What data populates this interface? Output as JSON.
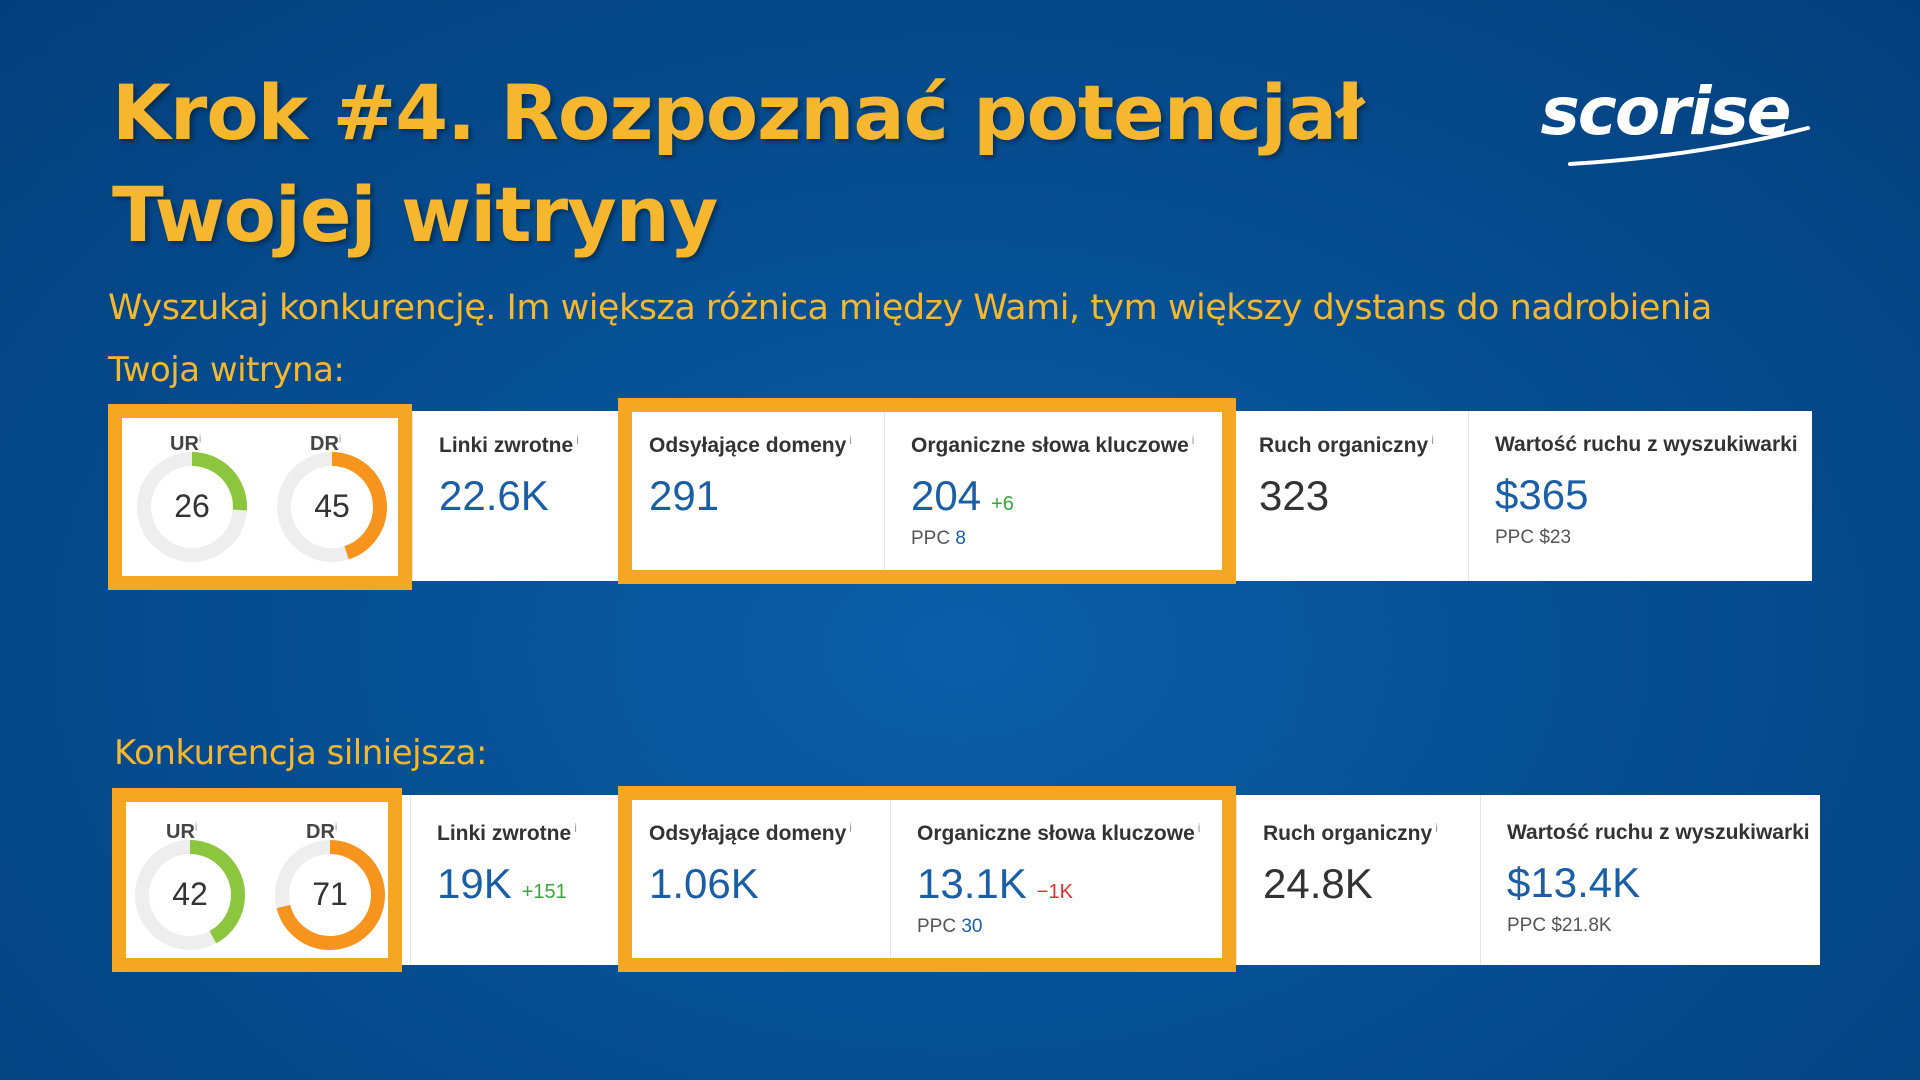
{
  "title_line1": "Krok #4. Rozpoznać potencjał",
  "title_line2": "Twojej witryny",
  "logo_text": "scorise",
  "subtitle": "Wyszukaj konkurencję. Im większa różnica między Wami, tym większy dystans do nadrobienia",
  "colors": {
    "accent": "#f6b72e",
    "frame": "#f5a623",
    "ur_ring": "#8cc63f",
    "dr_ring": "#f7941d",
    "value_blue": "#1a5fa6"
  },
  "yours": {
    "label": "Twoja witryna:",
    "ur": {
      "label": "UR",
      "value": "26",
      "fraction": 0.26
    },
    "dr": {
      "label": "DR",
      "value": "45",
      "fraction": 0.45
    },
    "backlinks": {
      "label": "Linki zwrotne",
      "value": "22.6K",
      "delta": ""
    },
    "ref_domains": {
      "label": "Odsyłające domeny",
      "value": "291"
    },
    "keywords": {
      "label": "Organiczne słowa kluczowe",
      "value": "204",
      "delta": "+6",
      "ppc_label": "PPC",
      "ppc_value": "8"
    },
    "traffic": {
      "label": "Ruch organiczny",
      "value": "323"
    },
    "traffic_value": {
      "label": "Wartość ruchu z wyszukiwarki",
      "value": "$365",
      "ppc": "PPC $23"
    }
  },
  "competitor": {
    "label": "Konkurencja silniejsza:",
    "ur": {
      "label": "UR",
      "value": "42",
      "fraction": 0.42
    },
    "dr": {
      "label": "DR",
      "value": "71",
      "fraction": 0.71
    },
    "backlinks": {
      "label": "Linki zwrotne",
      "value": "19K",
      "delta": "+151"
    },
    "ref_domains": {
      "label": "Odsyłające domeny",
      "value": "1.06K"
    },
    "keywords": {
      "label": "Organiczne słowa kluczowe",
      "value": "13.1K",
      "delta": "−1K",
      "ppc_label": "PPC",
      "ppc_value": "30"
    },
    "traffic": {
      "label": "Ruch organiczny",
      "value": "24.8K"
    },
    "traffic_value": {
      "label": "Wartość ruchu z wyszukiwarki",
      "value": "$13.4K",
      "ppc": "PPC $21.8K"
    }
  }
}
